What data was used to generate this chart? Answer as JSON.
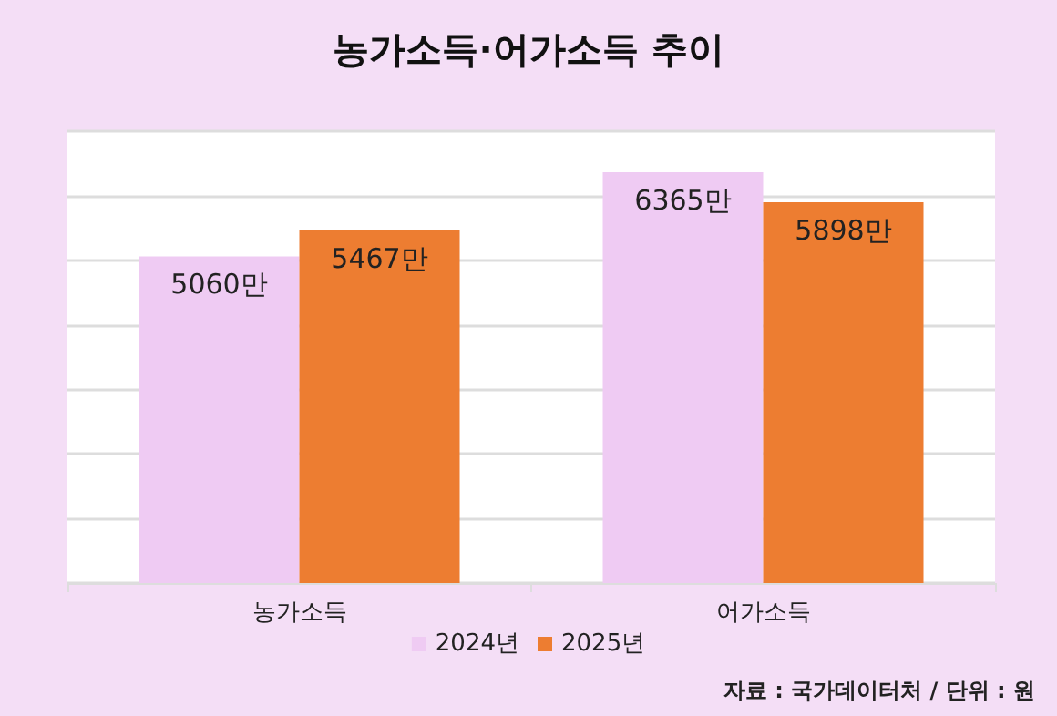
{
  "chart_data": {
    "type": "bar",
    "title": "농가소득·어가소득 추이",
    "categories": [
      "농가소득",
      "어가소득"
    ],
    "series": [
      {
        "name": "2024년",
        "color": "#efcbf3",
        "values": [
          5060,
          6365
        ],
        "value_labels": [
          "5060만",
          "6365만"
        ]
      },
      {
        "name": "2025년",
        "color": "#ed7d31",
        "values": [
          5467,
          5898
        ],
        "value_labels": [
          "5467만",
          "5898만"
        ]
      }
    ],
    "ylim": [
      0,
      7000
    ],
    "yticks": [
      {
        "value": 0,
        "label": null
      },
      {
        "value": 1000,
        "label": null
      },
      {
        "value": 2000,
        "label": null
      },
      {
        "value": 3000,
        "label": null
      },
      {
        "value": 4000,
        "label": null
      },
      {
        "value": 5000,
        "label": null
      },
      {
        "value": 6000,
        "label": null
      },
      {
        "value": 7000,
        "label": null
      }
    ],
    "tick_labels": "x",
    "grid": "y",
    "legend": "bottom",
    "annotations": [
      "자료 : 국가데이터처 / 단위 : 원"
    ]
  }
}
